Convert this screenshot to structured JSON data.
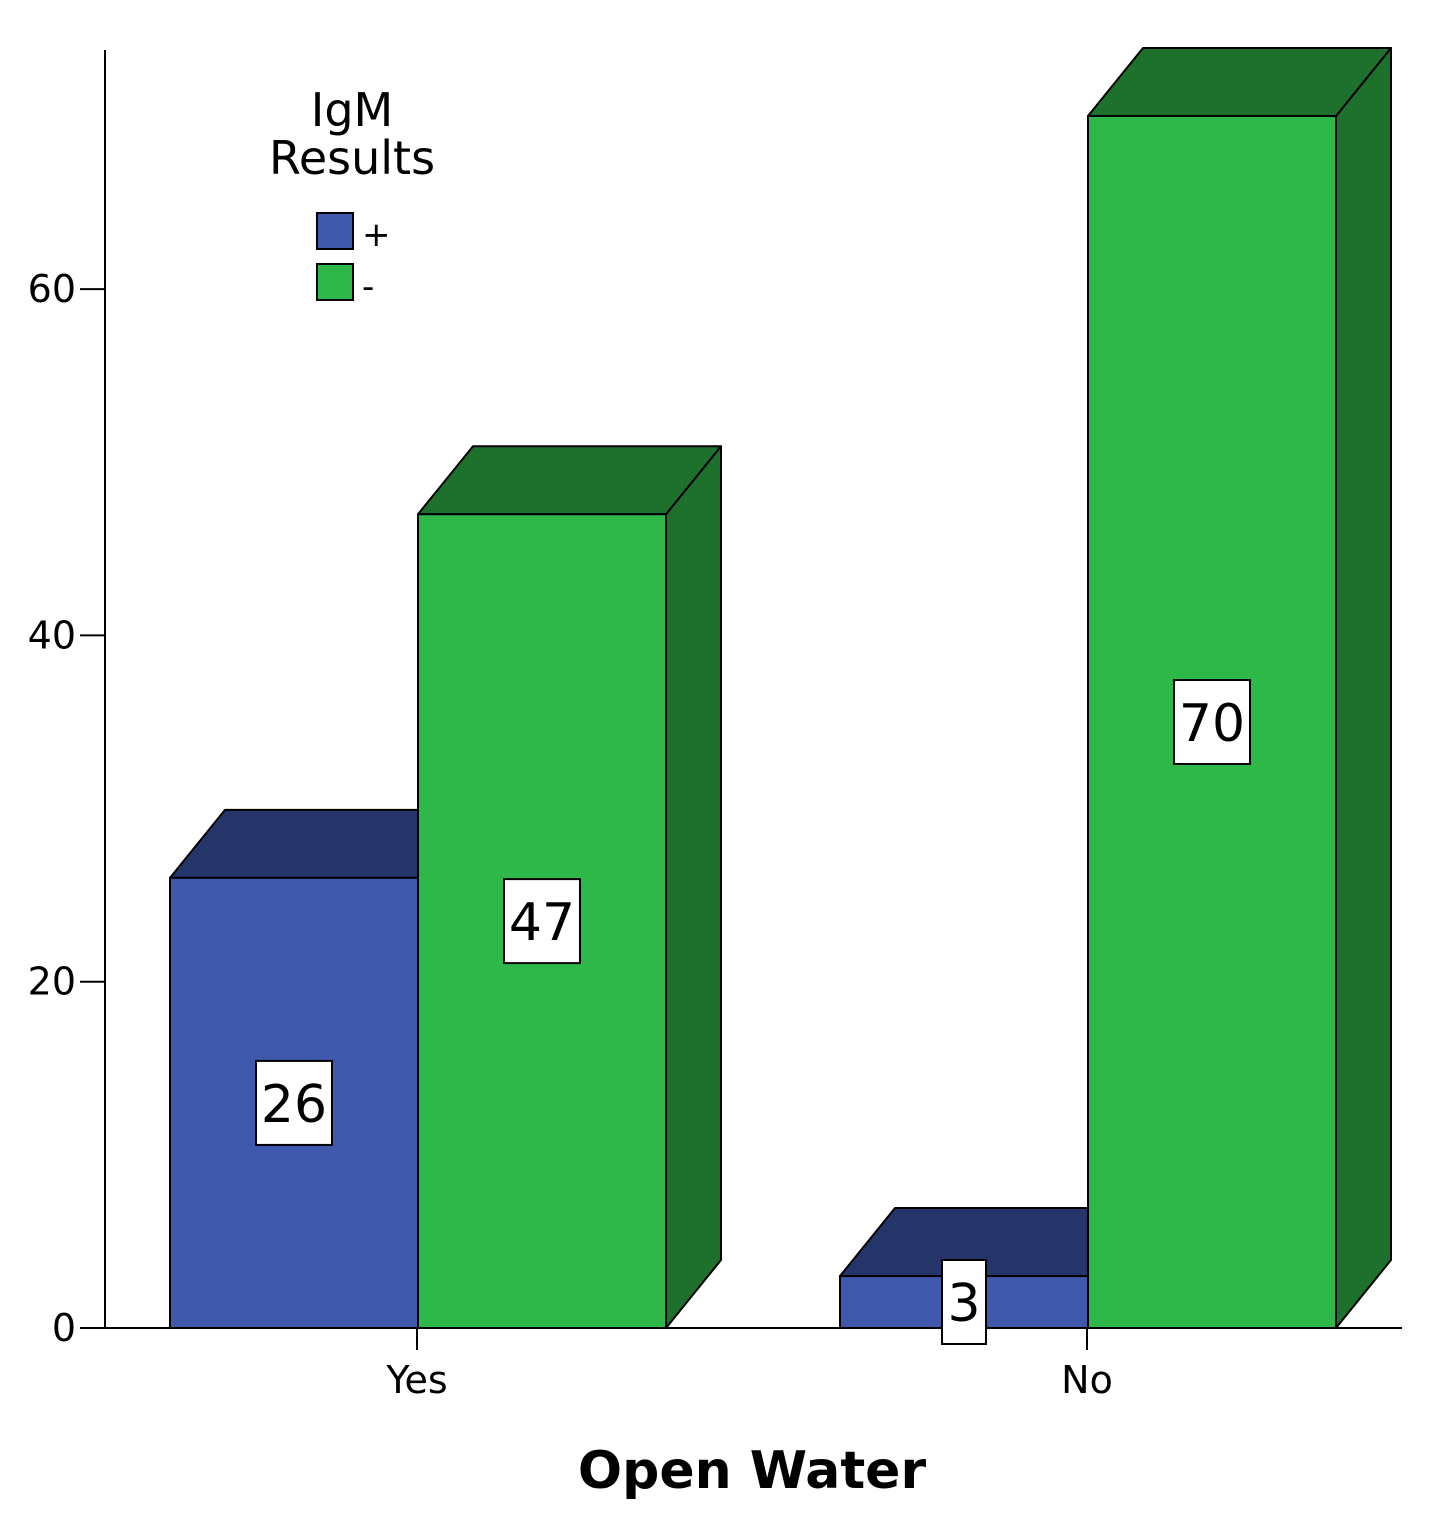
{
  "chart_data": {
    "type": "bar",
    "style": "3d-clustered",
    "categories": [
      "Yes",
      "No"
    ],
    "series": [
      {
        "name": "+",
        "values": [
          26,
          3
        ],
        "color": "#3f58ac",
        "top_color": "#263569"
      },
      {
        "name": "-",
        "values": [
          47,
          70
        ],
        "color": "#2fb84a",
        "side_color": "#1e712d"
      }
    ],
    "data_labels": [
      [
        "26",
        "3"
      ],
      [
        "47",
        "70"
      ]
    ],
    "xlabel": "Open Water",
    "ylabel": "",
    "ylim": [
      0,
      70
    ],
    "yticks": [
      0,
      20,
      40,
      60
    ],
    "grid": false,
    "legend": {
      "title_lines": [
        "IgM",
        "Results"
      ],
      "position": "top-left"
    }
  }
}
